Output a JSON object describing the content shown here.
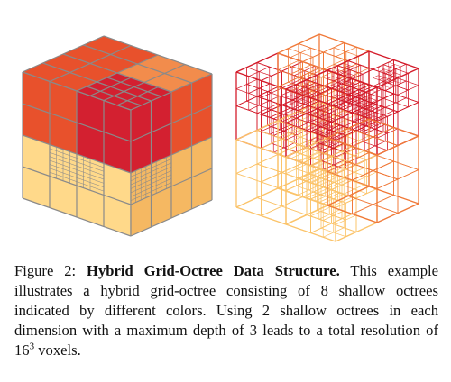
{
  "figure": {
    "colors": {
      "top": "#e8512c",
      "top_light": "#f28c4c",
      "front": "#d32030",
      "bottom": "#ffd98a",
      "bottom_dark": "#f5b862",
      "grid": "#8a8a8a",
      "wire_red": "#d41d2c",
      "wire_orange": "#f07a3a",
      "wire_yellow": "#fbc46b"
    }
  },
  "caption": {
    "label": "Figure 2:",
    "title": "Hybrid Grid-Octree Data Structure.",
    "body_a": "This example illustrates a hybrid grid-octree consisting of 8 shallow octrees indicated by different colors. Using 2 shallow octrees in each dimension with a maximum depth of 3 leads to a total resolution of 16",
    "exponent": "3",
    "body_b": " voxels."
  }
}
